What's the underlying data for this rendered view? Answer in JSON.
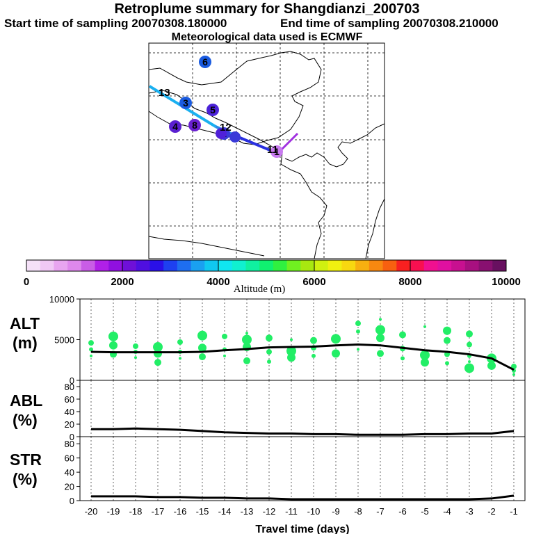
{
  "header": {
    "title": "Retroplume summary for Shangdianzi_200703",
    "start": "Start time of sampling 20070308.180000",
    "end": "End time of sampling 20070308.210000",
    "met": "Meteorological data used is ECMWF"
  },
  "map": {
    "markers": [
      {
        "label": "6",
        "color": "#1a5be0"
      },
      {
        "label": "3",
        "color": "#1a5be0"
      },
      {
        "label": "5",
        "color": "#4b22d8"
      },
      {
        "label": "4",
        "color": "#5a1fd0"
      },
      {
        "label": "8",
        "color": "#6a1fd0"
      },
      {
        "label": "2",
        "color": "#3a3ad8"
      },
      {
        "label": "1",
        "color": "#c87bf0"
      }
    ],
    "numbers": [
      "13",
      "12",
      "11"
    ]
  },
  "colorbar": {
    "colors": [
      "#f5e1f8",
      "#f0c8f5",
      "#e8a5f0",
      "#de88ec",
      "#c95de6",
      "#b020e8",
      "#9010e0",
      "#6f10d8",
      "#4f0fe0",
      "#2a10e8",
      "#1e40f0",
      "#1e6ef0",
      "#1aa0f0",
      "#10c8f0",
      "#10e6f0",
      "#10f0d0",
      "#10f0a0",
      "#10f070",
      "#30f040",
      "#70f020",
      "#a8e810",
      "#d0f010",
      "#f0f010",
      "#f8d810",
      "#f8b010",
      "#f88810",
      "#f86010",
      "#f82020",
      "#f81050",
      "#f01090",
      "#e010a0",
      "#c81090",
      "#a81080",
      "#881070",
      "#681060"
    ],
    "ticks": [
      "0",
      "2000",
      "4000",
      "6000",
      "8000",
      "10000"
    ],
    "label": "Altitude (m)"
  },
  "panels": {
    "alt": {
      "label1": "ALT",
      "label2": "(m)"
    },
    "abl": {
      "label1": "ABL",
      "label2": "(%)"
    },
    "str": {
      "label1": "STR",
      "label2": "(%)"
    }
  },
  "chart_data": [
    {
      "type": "line",
      "title": "ALT (m)",
      "x": [
        -20,
        -19,
        -18,
        -17,
        -16,
        -15,
        -14,
        -13,
        -12,
        -11,
        -10,
        -9,
        -8,
        -7,
        -6,
        -5,
        -4,
        -3,
        -2,
        -1
      ],
      "values": [
        3500,
        3450,
        3450,
        3450,
        3450,
        3500,
        3700,
        3850,
        4050,
        4100,
        4150,
        4300,
        4400,
        4300,
        4000,
        3700,
        3500,
        3200,
        2700,
        1300
      ],
      "ylim": [
        0,
        10000
      ],
      "yticks": [
        "0",
        "5000",
        "10000"
      ],
      "scatter_points": [
        [
          -20,
          3000
        ],
        [
          -20,
          3800
        ],
        [
          -20,
          4600
        ],
        [
          -19,
          3200
        ],
        [
          -19,
          4300
        ],
        [
          -19,
          5400
        ],
        [
          -18,
          2800
        ],
        [
          -18,
          3500
        ],
        [
          -18,
          4200
        ],
        [
          -17,
          2200
        ],
        [
          -17,
          3300
        ],
        [
          -17,
          4100
        ],
        [
          -16,
          2700
        ],
        [
          -16,
          3500
        ],
        [
          -16,
          4700
        ],
        [
          -15,
          2900
        ],
        [
          -15,
          4000
        ],
        [
          -15,
          5500
        ],
        [
          -14,
          3000
        ],
        [
          -14,
          3800
        ],
        [
          -14,
          5400
        ],
        [
          -13,
          2400
        ],
        [
          -13,
          4100
        ],
        [
          -13,
          5000
        ],
        [
          -13,
          5800
        ],
        [
          -12,
          2300
        ],
        [
          -12,
          3500
        ],
        [
          -12,
          5200
        ],
        [
          -11,
          2800
        ],
        [
          -11,
          3600
        ],
        [
          -11,
          5000
        ],
        [
          -10,
          3000
        ],
        [
          -10,
          4000
        ],
        [
          -10,
          4900
        ],
        [
          -9,
          3300
        ],
        [
          -9,
          5100
        ],
        [
          -8,
          3800
        ],
        [
          -8,
          6000
        ],
        [
          -8,
          7000
        ],
        [
          -7,
          3300
        ],
        [
          -7,
          5200
        ],
        [
          -7,
          6200
        ],
        [
          -7,
          7500
        ],
        [
          -6,
          2700
        ],
        [
          -6,
          3900
        ],
        [
          -6,
          5600
        ],
        [
          -5,
          2200
        ],
        [
          -5,
          3100
        ],
        [
          -5,
          6600
        ],
        [
          -4,
          2100
        ],
        [
          -4,
          3200
        ],
        [
          -4,
          4900
        ],
        [
          -4,
          6100
        ],
        [
          -3,
          1500
        ],
        [
          -3,
          2300
        ],
        [
          -3,
          3000
        ],
        [
          -3,
          4400
        ],
        [
          -3,
          5700
        ],
        [
          -2,
          1800
        ],
        [
          -2,
          2700
        ],
        [
          -1,
          700
        ],
        [
          -1,
          1200
        ],
        [
          -1,
          1700
        ]
      ]
    },
    {
      "type": "line",
      "title": "ABL (%)",
      "x": [
        -20,
        -19,
        -18,
        -17,
        -16,
        -15,
        -14,
        -13,
        -12,
        -11,
        -10,
        -9,
        -8,
        -7,
        -6,
        -5,
        -4,
        -3,
        -2,
        -1
      ],
      "values": [
        12,
        12,
        13,
        12,
        11,
        9,
        7,
        6,
        5,
        5,
        4,
        4,
        3,
        3,
        3,
        4,
        4,
        5,
        5,
        9
      ],
      "ylim": [
        0,
        90
      ],
      "yticks": [
        "0",
        "20",
        "40",
        "60",
        "80"
      ]
    },
    {
      "type": "line",
      "title": "STR (%)",
      "x": [
        -20,
        -19,
        -18,
        -17,
        -16,
        -15,
        -14,
        -13,
        -12,
        -11,
        -10,
        -9,
        -8,
        -7,
        -6,
        -5,
        -4,
        -3,
        -2,
        -1
      ],
      "values": [
        6,
        6,
        6,
        5,
        5,
        4,
        4,
        3,
        3,
        2,
        2,
        2,
        2,
        2,
        2,
        2,
        2,
        2,
        3,
        7
      ],
      "ylim": [
        0,
        90
      ],
      "yticks": [
        "0",
        "20",
        "40",
        "60",
        "80"
      ],
      "xlabel": "Travel time (days)",
      "xticks": [
        "-20",
        "-19",
        "-18",
        "-17",
        "-16",
        "-15",
        "-14",
        "-13",
        "-12",
        "-11",
        "-10",
        "-9",
        "-8",
        "-7",
        "-6",
        "-5",
        "-4",
        "-3",
        "-2",
        "-1"
      ]
    }
  ]
}
